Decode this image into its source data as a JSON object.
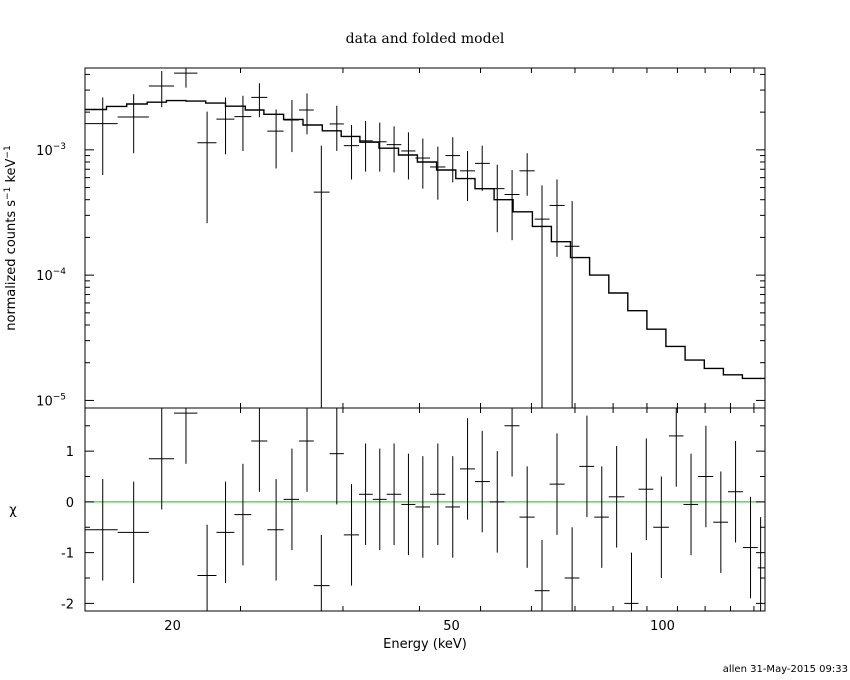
{
  "chart_data": [
    {
      "type": "scatter",
      "title": "data and folded model",
      "xlabel": "",
      "ylabel": "normalized counts s⁻¹ keV⁻¹",
      "ylabel_parts": {
        "base": "normalized counts s",
        "exp1": "−1",
        "mid": " keV",
        "exp2": "−1"
      },
      "xscale": "log",
      "yscale": "log",
      "xlim": [
        15,
        140
      ],
      "ylim": [
        8.7e-06,
        0.0045
      ],
      "yticks": [
        {
          "value": 1e-05,
          "base": "10",
          "exp": "−5"
        },
        {
          "value": 0.0001,
          "base": "10",
          "exp": "−4"
        },
        {
          "value": 0.001,
          "base": "10",
          "exp": "−3"
        }
      ],
      "series": [
        {
          "type": "errorbar",
          "points": [
            {
              "x": 15.9,
              "xlo": 15.0,
              "xhi": 16.7,
              "y": 0.00162,
              "ylo": 0.00063,
              "yhi": 0.00262
            },
            {
              "x": 17.6,
              "xlo": 16.7,
              "xhi": 18.5,
              "y": 0.00183,
              "ylo": 0.00094,
              "yhi": 0.00278
            },
            {
              "x": 19.3,
              "xlo": 18.5,
              "xhi": 20.1,
              "y": 0.00323,
              "ylo": 0.00219,
              "yhi": 0.00426
            },
            {
              "x": 20.9,
              "xlo": 20.1,
              "xhi": 21.7,
              "y": 0.0041,
              "ylo": 0.00314,
              "yhi": 0.0045
            },
            {
              "x": 22.4,
              "xlo": 21.7,
              "xhi": 23.1,
              "y": 0.00114,
              "ylo": 0.00026,
              "yhi": 0.00202
            },
            {
              "x": 23.8,
              "xlo": 23.1,
              "xhi": 24.5,
              "y": 0.00176,
              "ylo": 0.00092,
              "yhi": 0.00261
            },
            {
              "x": 25.2,
              "xlo": 24.5,
              "xhi": 25.9,
              "y": 0.00184,
              "ylo": 0.00098,
              "yhi": 0.0027
            },
            {
              "x": 26.6,
              "xlo": 25.9,
              "xhi": 27.3,
              "y": 0.00262,
              "ylo": 0.00182,
              "yhi": 0.0034
            },
            {
              "x": 28.1,
              "xlo": 27.3,
              "xhi": 28.8,
              "y": 0.00141,
              "ylo": 0.00071,
              "yhi": 0.0021
            },
            {
              "x": 29.6,
              "xlo": 28.8,
              "xhi": 30.3,
              "y": 0.00173,
              "ylo": 0.00096,
              "yhi": 0.0025
            },
            {
              "x": 31.1,
              "xlo": 30.3,
              "xhi": 31.8,
              "y": 0.00208,
              "ylo": 0.00133,
              "yhi": 0.00282
            },
            {
              "x": 32.6,
              "xlo": 31.8,
              "xhi": 33.5,
              "y": 0.00046,
              "ylo": 8.7e-06,
              "yhi": 0.00108
            },
            {
              "x": 34.3,
              "xlo": 33.5,
              "xhi": 35.1,
              "y": 0.00161,
              "ylo": 0.00098,
              "yhi": 0.00225
            },
            {
              "x": 36.0,
              "xlo": 35.1,
              "xhi": 36.9,
              "y": 0.00108,
              "ylo": 0.00058,
              "yhi": 0.00158
            },
            {
              "x": 37.7,
              "xlo": 36.9,
              "xhi": 38.6,
              "y": 0.00118,
              "ylo": 0.00067,
              "yhi": 0.0017
            },
            {
              "x": 39.5,
              "xlo": 38.6,
              "xhi": 40.4,
              "y": 0.00116,
              "ylo": 0.00067,
              "yhi": 0.00165
            },
            {
              "x": 41.4,
              "xlo": 40.4,
              "xhi": 42.4,
              "y": 0.0011,
              "ylo": 0.00066,
              "yhi": 0.00154
            },
            {
              "x": 43.4,
              "xlo": 42.4,
              "xhi": 44.4,
              "y": 0.00098,
              "ylo": 0.00058,
              "yhi": 0.00138
            },
            {
              "x": 45.5,
              "xlo": 44.4,
              "xhi": 46.6,
              "y": 0.00086,
              "ylo": 0.00049,
              "yhi": 0.00123
            },
            {
              "x": 47.8,
              "xlo": 46.6,
              "xhi": 49.0,
              "y": 0.00073,
              "ylo": 0.0004,
              "yhi": 0.00106
            },
            {
              "x": 50.2,
              "xlo": 49.0,
              "xhi": 51.4,
              "y": 0.0009,
              "ylo": 0.00055,
              "yhi": 0.00126
            },
            {
              "x": 52.7,
              "xlo": 51.4,
              "xhi": 54.0,
              "y": 0.00068,
              "ylo": 0.00039,
              "yhi": 0.00098
            },
            {
              "x": 55.3,
              "xlo": 54.0,
              "xhi": 56.7,
              "y": 0.00078,
              "ylo": 0.00047,
              "yhi": 0.00108
            },
            {
              "x": 58.1,
              "xlo": 56.7,
              "xhi": 59.5,
              "y": 0.00049,
              "ylo": 0.00022,
              "yhi": 0.00076
            },
            {
              "x": 61.0,
              "xlo": 59.5,
              "xhi": 62.5,
              "y": 0.00044,
              "ylo": 0.00019,
              "yhi": 0.00069
            },
            {
              "x": 64.1,
              "xlo": 62.5,
              "xhi": 65.7,
              "y": 0.00068,
              "ylo": 0.00043,
              "yhi": 0.00094
            },
            {
              "x": 67.3,
              "xlo": 65.7,
              "xhi": 69.0,
              "y": 0.00028,
              "ylo": 8.7e-06,
              "yhi": 0.00052
            },
            {
              "x": 70.7,
              "xlo": 69.0,
              "xhi": 72.5,
              "y": 0.00036,
              "ylo": 0.00014,
              "yhi": 0.00058
            },
            {
              "x": 74.3,
              "xlo": 72.5,
              "xhi": 76.1,
              "y": 0.00017,
              "ylo": 8.7e-06,
              "yhi": 0.00039
            }
          ]
        },
        {
          "type": "step",
          "segments": [
            {
              "xlo": 15.0,
              "xhi": 16.1,
              "y": 0.0021
            },
            {
              "xlo": 16.1,
              "xhi": 17.2,
              "y": 0.00222
            },
            {
              "xlo": 17.2,
              "xhi": 18.4,
              "y": 0.00232
            },
            {
              "xlo": 18.4,
              "xhi": 19.6,
              "y": 0.0024
            },
            {
              "xlo": 19.6,
              "xhi": 20.9,
              "y": 0.00247
            },
            {
              "xlo": 20.9,
              "xhi": 22.3,
              "y": 0.00245
            },
            {
              "xlo": 22.3,
              "xhi": 23.8,
              "y": 0.00236
            },
            {
              "xlo": 23.8,
              "xhi": 25.4,
              "y": 0.00223
            },
            {
              "xlo": 25.4,
              "xhi": 27.0,
              "y": 0.00208
            },
            {
              "xlo": 27.0,
              "xhi": 28.8,
              "y": 0.00192
            },
            {
              "xlo": 28.8,
              "xhi": 30.7,
              "y": 0.00175
            },
            {
              "xlo": 30.7,
              "xhi": 32.7,
              "y": 0.00158
            },
            {
              "xlo": 32.7,
              "xhi": 34.8,
              "y": 0.00142
            },
            {
              "xlo": 34.8,
              "xhi": 37.0,
              "y": 0.00128
            },
            {
              "xlo": 37.0,
              "xhi": 39.4,
              "y": 0.00115
            },
            {
              "xlo": 39.4,
              "xhi": 42.0,
              "y": 0.00103
            },
            {
              "xlo": 42.0,
              "xhi": 44.7,
              "y": 0.00091
            },
            {
              "xlo": 44.7,
              "xhi": 47.6,
              "y": 0.0008
            },
            {
              "xlo": 47.6,
              "xhi": 50.7,
              "y": 0.00069
            },
            {
              "xlo": 50.7,
              "xhi": 54.0,
              "y": 0.00059
            },
            {
              "xlo": 54.0,
              "xhi": 57.5,
              "y": 0.00049
            },
            {
              "xlo": 57.5,
              "xhi": 61.2,
              "y": 0.0004
            },
            {
              "xlo": 61.2,
              "xhi": 65.2,
              "y": 0.00032
            },
            {
              "xlo": 65.2,
              "xhi": 69.4,
              "y": 0.000245
            },
            {
              "xlo": 69.4,
              "xhi": 73.9,
              "y": 0.000185
            },
            {
              "xlo": 73.9,
              "xhi": 78.7,
              "y": 0.000138
            },
            {
              "xlo": 78.7,
              "xhi": 83.8,
              "y": 0.0001
            },
            {
              "xlo": 83.8,
              "xhi": 89.2,
              "y": 7.2e-05
            },
            {
              "xlo": 89.2,
              "xhi": 95.0,
              "y": 5.2e-05
            },
            {
              "xlo": 95.0,
              "xhi": 101.1,
              "y": 3.7e-05
            },
            {
              "xlo": 101.1,
              "xhi": 107.7,
              "y": 2.7e-05
            },
            {
              "xlo": 107.7,
              "xhi": 114.7,
              "y": 2.1e-05
            },
            {
              "xlo": 114.7,
              "xhi": 122.1,
              "y": 1.8e-05
            },
            {
              "xlo": 122.1,
              "xhi": 130.0,
              "y": 1.6e-05
            },
            {
              "xlo": 130.0,
              "xhi": 140.0,
              "y": 1.5e-05
            }
          ]
        }
      ]
    },
    {
      "type": "scatter",
      "xlabel": "Energy (keV)",
      "ylabel": "χ",
      "xscale": "log",
      "xlim": [
        15,
        140
      ],
      "ylim": [
        -2.15,
        1.85
      ],
      "xticks": [
        20,
        50,
        100
      ],
      "yticks": [
        -2,
        -1,
        0,
        1
      ],
      "zero_line_color": "#00cc00",
      "series": [
        {
          "type": "errorbar",
          "points": [
            {
              "x": 15.9,
              "xlo": 15.0,
              "xhi": 16.7,
              "y": -0.55,
              "err": 1.0
            },
            {
              "x": 17.6,
              "xlo": 16.7,
              "xhi": 18.5,
              "y": -0.6,
              "err": 1.0
            },
            {
              "x": 19.3,
              "xlo": 18.5,
              "xhi": 20.1,
              "y": 0.85,
              "err": 1.0
            },
            {
              "x": 20.9,
              "xlo": 20.1,
              "xhi": 21.7,
              "y": 1.75,
              "err": 1.0
            },
            {
              "x": 22.4,
              "xlo": 21.7,
              "xhi": 23.1,
              "y": -1.45,
              "err": 1.0
            },
            {
              "x": 23.8,
              "xlo": 23.1,
              "xhi": 24.5,
              "y": -0.6,
              "err": 1.0
            },
            {
              "x": 25.2,
              "xlo": 24.5,
              "xhi": 25.9,
              "y": -0.25,
              "err": 1.0
            },
            {
              "x": 26.6,
              "xlo": 25.9,
              "xhi": 27.3,
              "y": 1.2,
              "err": 1.0
            },
            {
              "x": 28.1,
              "xlo": 27.3,
              "xhi": 28.8,
              "y": -0.55,
              "err": 1.0
            },
            {
              "x": 29.6,
              "xlo": 28.8,
              "xhi": 30.3,
              "y": 0.05,
              "err": 1.0
            },
            {
              "x": 31.1,
              "xlo": 30.3,
              "xhi": 31.8,
              "y": 1.2,
              "err": 1.0
            },
            {
              "x": 32.6,
              "xlo": 31.8,
              "xhi": 33.5,
              "y": -1.65,
              "err": 1.0
            },
            {
              "x": 34.3,
              "xlo": 33.5,
              "xhi": 35.1,
              "y": 0.95,
              "err": 1.0
            },
            {
              "x": 36.0,
              "xlo": 35.1,
              "xhi": 36.9,
              "y": -0.65,
              "err": 1.0
            },
            {
              "x": 37.7,
              "xlo": 36.9,
              "xhi": 38.6,
              "y": 0.15,
              "err": 1.0
            },
            {
              "x": 39.5,
              "xlo": 38.6,
              "xhi": 40.4,
              "y": 0.05,
              "err": 1.0
            },
            {
              "x": 41.4,
              "xlo": 40.4,
              "xhi": 42.4,
              "y": 0.15,
              "err": 1.0
            },
            {
              "x": 43.4,
              "xlo": 42.4,
              "xhi": 44.4,
              "y": -0.05,
              "err": 1.0
            },
            {
              "x": 45.5,
              "xlo": 44.4,
              "xhi": 46.6,
              "y": -0.1,
              "err": 1.0
            },
            {
              "x": 47.8,
              "xlo": 46.6,
              "xhi": 49.0,
              "y": 0.15,
              "err": 1.0
            },
            {
              "x": 50.2,
              "xlo": 49.0,
              "xhi": 51.4,
              "y": -0.1,
              "err": 1.0
            },
            {
              "x": 52.7,
              "xlo": 51.4,
              "xhi": 54.0,
              "y": 0.65,
              "err": 1.0
            },
            {
              "x": 55.3,
              "xlo": 54.0,
              "xhi": 56.7,
              "y": 0.4,
              "err": 1.0
            },
            {
              "x": 58.1,
              "xlo": 56.7,
              "xhi": 59.5,
              "y": 0.0,
              "err": 1.0
            },
            {
              "x": 61.0,
              "xlo": 59.5,
              "xhi": 62.5,
              "y": 1.5,
              "err": 1.0
            },
            {
              "x": 64.1,
              "xlo": 62.5,
              "xhi": 65.7,
              "y": -0.3,
              "err": 1.0
            },
            {
              "x": 67.3,
              "xlo": 65.7,
              "xhi": 69.0,
              "y": -1.75,
              "err": 1.0
            },
            {
              "x": 70.7,
              "xlo": 69.0,
              "xhi": 72.5,
              "y": 0.35,
              "err": 1.0
            },
            {
              "x": 74.3,
              "xlo": 72.5,
              "xhi": 76.1,
              "y": -1.5,
              "err": 1.0
            },
            {
              "x": 78.0,
              "xlo": 76.1,
              "xhi": 79.9,
              "y": 0.7,
              "err": 1.0
            },
            {
              "x": 81.9,
              "xlo": 79.9,
              "xhi": 83.8,
              "y": -0.3,
              "err": 1.0
            },
            {
              "x": 86.0,
              "xlo": 83.8,
              "xhi": 88.2,
              "y": 0.1,
              "err": 1.0
            },
            {
              "x": 90.3,
              "xlo": 88.2,
              "xhi": 92.4,
              "y": -2.0,
              "err": 1.0
            },
            {
              "x": 94.8,
              "xlo": 92.4,
              "xhi": 97.0,
              "y": 0.25,
              "err": 1.0
            },
            {
              "x": 99.6,
              "xlo": 97.0,
              "xhi": 102.1,
              "y": -0.5,
              "err": 1.0
            },
            {
              "x": 104.6,
              "xlo": 102.1,
              "xhi": 107.1,
              "y": 1.3,
              "err": 1.0
            },
            {
              "x": 109.8,
              "xlo": 107.1,
              "xhi": 112.4,
              "y": -0.05,
              "err": 1.0
            },
            {
              "x": 115.3,
              "xlo": 112.4,
              "xhi": 118.1,
              "y": 0.5,
              "err": 1.0
            },
            {
              "x": 121.1,
              "xlo": 118.1,
              "xhi": 124.0,
              "y": -0.4,
              "err": 1.0
            },
            {
              "x": 127.1,
              "xlo": 124.0,
              "xhi": 130.2,
              "y": 0.2,
              "err": 1.0
            },
            {
              "x": 133.5,
              "xlo": 130.2,
              "xhi": 136.7,
              "y": -0.9,
              "err": 1.0
            },
            {
              "x": 138.0,
              "xlo": 136.7,
              "xhi": 140.0,
              "y": -1.3,
              "err": 1.0
            }
          ]
        }
      ]
    }
  ],
  "footer": "allen 31-May-2015 09:33"
}
